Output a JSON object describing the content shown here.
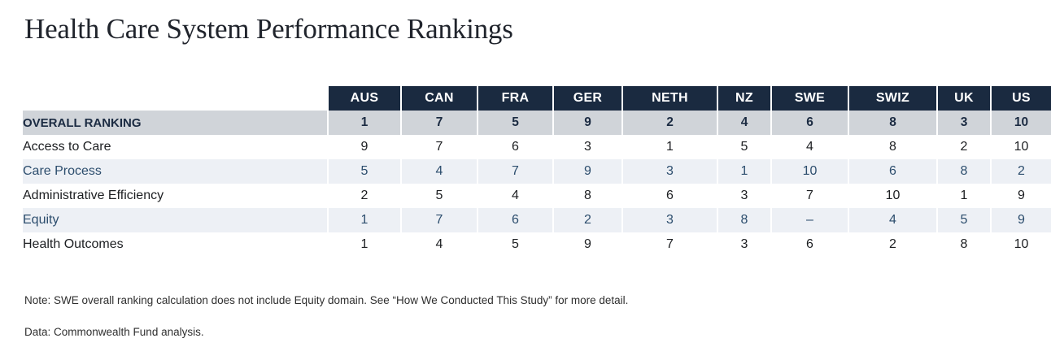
{
  "title": "Health Care System Performance Rankings",
  "chart_data": {
    "type": "table",
    "title": "Health Care System Performance Rankings",
    "columns": [
      "AUS",
      "CAN",
      "FRA",
      "GER",
      "NETH",
      "NZ",
      "SWE",
      "SWIZ",
      "UK",
      "US"
    ],
    "rows": [
      {
        "label": "OVERALL RANKING",
        "style": "overall",
        "values": [
          "1",
          "7",
          "5",
          "9",
          "2",
          "4",
          "6",
          "8",
          "3",
          "10"
        ]
      },
      {
        "label": "Access to Care",
        "style": "white",
        "values": [
          "9",
          "7",
          "6",
          "3",
          "1",
          "5",
          "4",
          "8",
          "2",
          "10"
        ]
      },
      {
        "label": "Care Process",
        "style": "blue",
        "values": [
          "5",
          "4",
          "7",
          "9",
          "3",
          "1",
          "10",
          "6",
          "8",
          "2"
        ]
      },
      {
        "label": "Administrative Efficiency",
        "style": "white",
        "values": [
          "2",
          "5",
          "4",
          "8",
          "6",
          "3",
          "7",
          "10",
          "1",
          "9"
        ]
      },
      {
        "label": "Equity",
        "style": "blue",
        "values": [
          "1",
          "7",
          "6",
          "2",
          "3",
          "8",
          "–",
          "4",
          "5",
          "9"
        ]
      },
      {
        "label": "Health Outcomes",
        "style": "white",
        "values": [
          "1",
          "4",
          "5",
          "9",
          "7",
          "3",
          "6",
          "2",
          "8",
          "10"
        ]
      }
    ]
  },
  "notes": {
    "note": "Note: SWE overall ranking calculation does not include Equity domain. See “How We Conducted This Study” for more detail.",
    "data_source": "Data: Commonwealth Fund analysis."
  },
  "colors": {
    "header_bg": "#1a2a40",
    "overall_row_bg": "#d0d4d9",
    "alt_row_bg": "#edf0f5",
    "navy_text": "#2c4d6d",
    "dark_navy_text": "#1b2b42",
    "header_text": "#ffffff"
  }
}
